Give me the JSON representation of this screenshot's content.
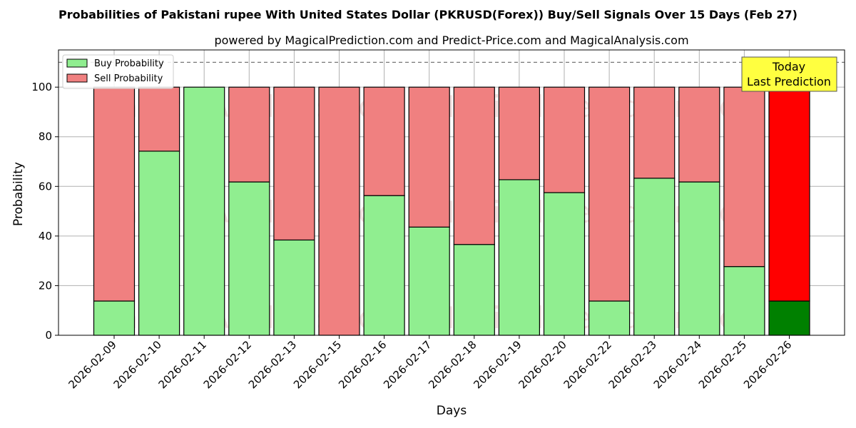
{
  "chart_data": {
    "type": "bar",
    "stacked": true,
    "title": "Probabilities of Pakistani rupee With United States Dollar (PKRUSD(Forex)) Buy/Sell Signals Over 15 Days (Feb 27)",
    "subtitle": "powered by MagicalPrediction.com and Predict-Price.com and MagicalAnalysis.com",
    "xlabel": "Days",
    "ylabel": "Probability",
    "ylim": [
      0,
      115
    ],
    "yticks": [
      0,
      20,
      40,
      60,
      80,
      100
    ],
    "grid": true,
    "legend_position": "top-left",
    "reference_line": 110,
    "categories": [
      "2026-02-09",
      "2026-02-10",
      "2026-02-11",
      "2026-02-12",
      "2026-02-13",
      "2026-02-15",
      "2026-02-16",
      "2026-02-17",
      "2026-02-18",
      "2026-02-19",
      "2026-02-20",
      "2026-02-22",
      "2026-02-23",
      "2026-02-24",
      "2026-02-25",
      "2026-02-26"
    ],
    "series": [
      {
        "name": "Buy Probability",
        "color": "#90ee90",
        "highlight_color": "#008000",
        "values": [
          13.8,
          74.2,
          100,
          61.8,
          38.4,
          0,
          56.3,
          43.6,
          36.6,
          62.7,
          57.5,
          13.8,
          63.3,
          61.8,
          27.7,
          13.8
        ]
      },
      {
        "name": "Sell Probability",
        "color": "#f08080",
        "highlight_color": "#ff0000",
        "values": [
          86.2,
          25.8,
          0,
          38.2,
          61.6,
          100,
          43.7,
          56.4,
          63.4,
          37.3,
          42.5,
          86.2,
          36.7,
          38.2,
          72.3,
          86.2
        ]
      }
    ],
    "highlight_index": 15,
    "annotation": {
      "line1": "Today",
      "line2": "Last Prediction",
      "color": "#ffff40"
    },
    "watermarks": [
      "MagicalAnalysis.com",
      "MagicalPrediction.com"
    ]
  }
}
